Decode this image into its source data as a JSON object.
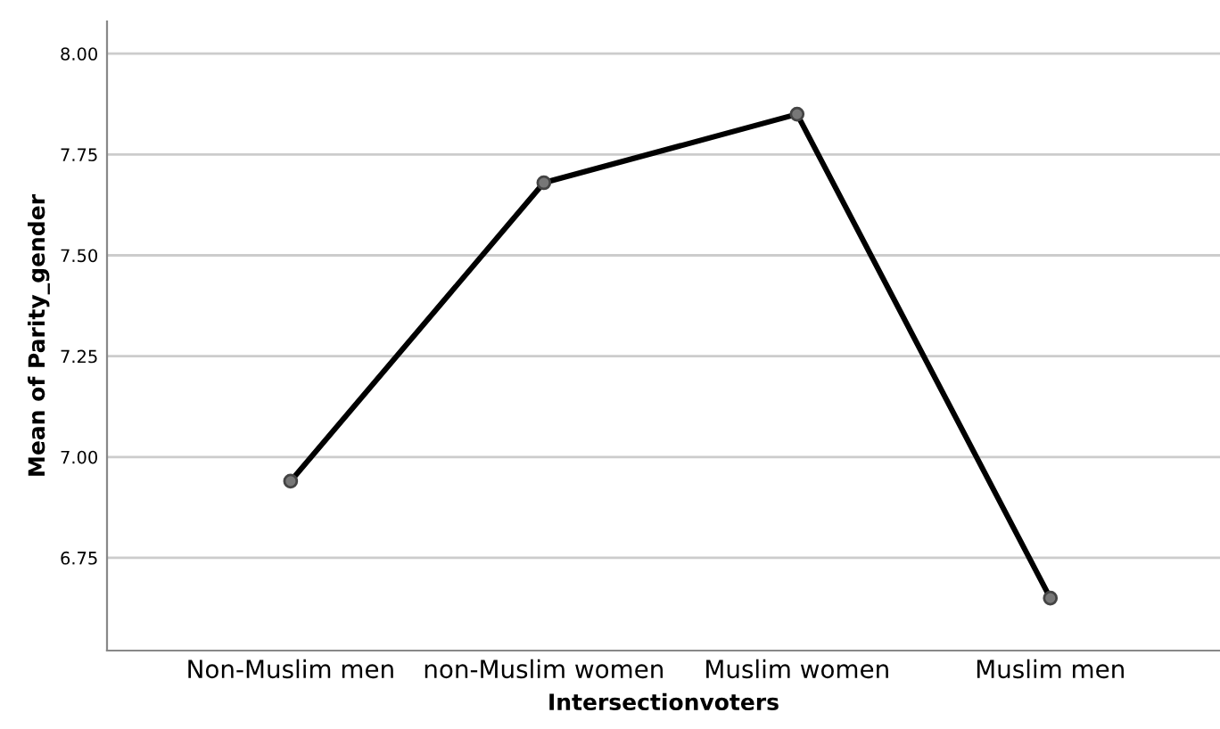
{
  "chart_data": {
    "type": "line",
    "xlabel": "Intersectionvoters",
    "ylabel": "Mean of Parity_gender",
    "categories": [
      "Non-Muslim men",
      "non-Muslim women",
      "Muslim women",
      "Muslim men"
    ],
    "series": [
      {
        "color": "#000000",
        "values": [
          6.94,
          7.68,
          7.85,
          6.65
        ]
      }
    ],
    "ylim": [
      6.52,
      8.08
    ],
    "yticks": [
      {
        "value": 6.75,
        "label": "6.75"
      },
      {
        "value": 7.0,
        "label": "7.00"
      },
      {
        "value": 7.25,
        "label": "7.25"
      },
      {
        "value": 7.5,
        "label": "7.50"
      },
      {
        "value": 7.75,
        "label": "7.75"
      },
      {
        "value": 8.0,
        "label": "8.00"
      }
    ],
    "grid": "y",
    "marker": "circle",
    "line_style": "solid"
  }
}
